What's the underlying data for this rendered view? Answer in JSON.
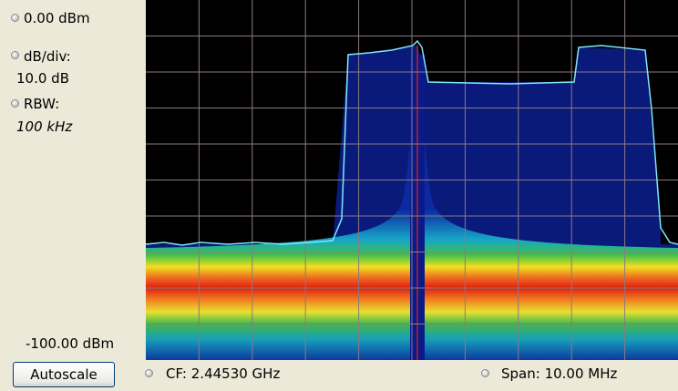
{
  "left_panel": {
    "reference_level": "0.00 dBm",
    "scale_label": "dB/div:",
    "scale_value": "10.0 dB",
    "rbw_label": "RBW:",
    "rbw_value": "100 kHz",
    "bottom_level": "-100.00 dBm"
  },
  "autoscale_button": "Autoscale",
  "footer": {
    "center_frequency": "CF: 2.44530 GHz",
    "span": "Span: 10.00 MHz"
  }
}
